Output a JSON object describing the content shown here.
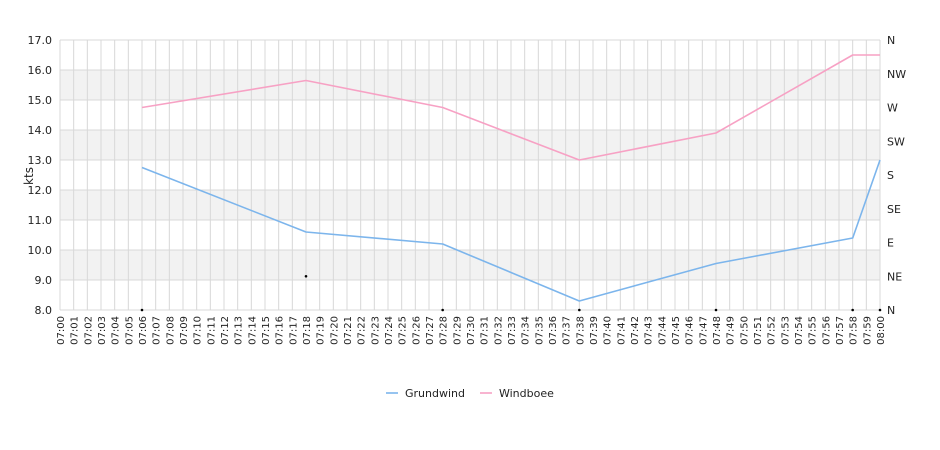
{
  "chart_data": {
    "type": "line",
    "ylabel": "kts",
    "ylim": [
      8.0,
      17.0
    ],
    "y_ticks": [
      "8.0",
      "9.0",
      "10.0",
      "11.0",
      "12.0",
      "13.0",
      "14.0",
      "15.0",
      "16.0",
      "17.0"
    ],
    "y2_ticks": [
      "N",
      "NE",
      "E",
      "SE",
      "S",
      "SW",
      "W",
      "NW",
      "N"
    ],
    "x_ticks": [
      "07:00",
      "07:01",
      "07:02",
      "07:03",
      "07:04",
      "07:05",
      "07:06",
      "07:07",
      "07:08",
      "07:09",
      "07:10",
      "07:11",
      "07:12",
      "07:13",
      "07:14",
      "07:15",
      "07:16",
      "07:17",
      "07:18",
      "07:19",
      "07:20",
      "07:21",
      "07:22",
      "07:23",
      "07:24",
      "07:25",
      "07:26",
      "07:27",
      "07:28",
      "07:29",
      "07:30",
      "07:31",
      "07:32",
      "07:33",
      "07:34",
      "07:35",
      "07:36",
      "07:37",
      "07:38",
      "07:39",
      "07:40",
      "07:41",
      "07:42",
      "07:43",
      "07:44",
      "07:45",
      "07:46",
      "07:47",
      "07:48",
      "07:49",
      "07:50",
      "07:51",
      "07:52",
      "07:53",
      "07:54",
      "07:55",
      "07:56",
      "07:57",
      "07:58",
      "07:59",
      "08:00"
    ],
    "grid": true,
    "legend": "bottom-center",
    "series": [
      {
        "name": "Grundwind",
        "color": "#7cb5ec",
        "x": [
          "07:06",
          "07:18",
          "07:28",
          "07:38",
          "07:48",
          "07:58",
          "08:00"
        ],
        "y": [
          12.75,
          10.6,
          10.2,
          8.3,
          9.55,
          10.4,
          13.0
        ]
      },
      {
        "name": "Windboee",
        "color": "#f7a1c4",
        "x": [
          "07:06",
          "07:18",
          "07:28",
          "07:38",
          "07:48",
          "07:58",
          "08:00"
        ],
        "y": [
          14.75,
          15.65,
          14.75,
          13.0,
          13.9,
          16.5,
          16.5
        ]
      }
    ],
    "direction_markers": [
      {
        "x": "07:06",
        "dir": "N"
      },
      {
        "x": "07:18",
        "dir": "NE"
      },
      {
        "x": "07:28",
        "dir": "N"
      },
      {
        "x": "07:38",
        "dir": "N"
      },
      {
        "x": "07:48",
        "dir": "N"
      },
      {
        "x": "07:58",
        "dir": "N"
      },
      {
        "x": "08:00",
        "dir": "N"
      }
    ]
  }
}
